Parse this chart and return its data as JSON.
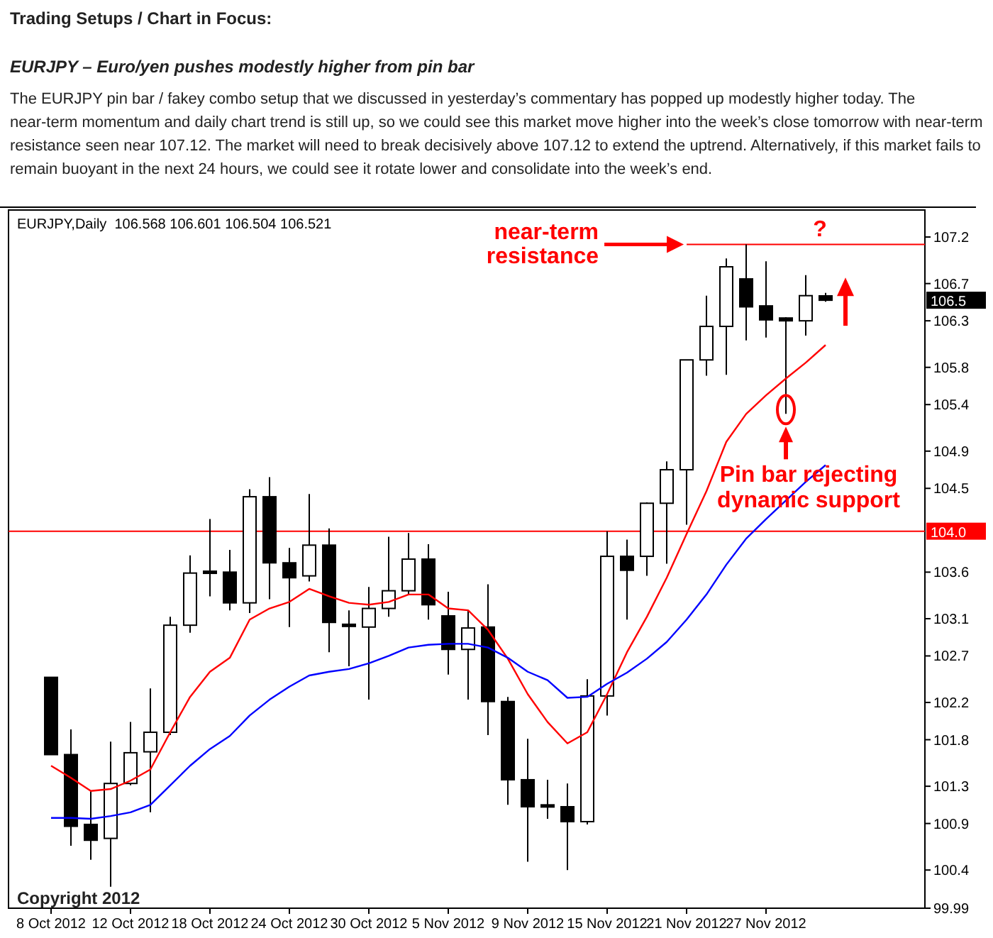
{
  "chart_data": {
    "type": "candlestick",
    "title": "Trading Setups / Chart in Focus:",
    "subtitle": "EURJPY – Euro/yen pushes modestly higher from pin bar",
    "categories": [
      "8 Oct 2012",
      null,
      null,
      null,
      "12 Oct 2012",
      null,
      null,
      null,
      "18 Oct 2012",
      null,
      null,
      null,
      "24 Oct 2012",
      null,
      null,
      null,
      "30 Oct 2012",
      null,
      null,
      null,
      "5 Nov 2012",
      null,
      null,
      null,
      "9 Nov 2012",
      null,
      null,
      null,
      "15 Nov 2012",
      null,
      null,
      null,
      "21 Nov 2012",
      null,
      null,
      null,
      "27 Nov 2012",
      null,
      null,
      null
    ],
    "ohlc": [
      [
        102.47,
        102.47,
        101.64,
        101.64
      ],
      [
        101.64,
        101.91,
        100.66,
        100.87
      ],
      [
        100.89,
        101.25,
        100.51,
        100.72
      ],
      [
        100.74,
        101.78,
        100.22,
        101.33
      ],
      [
        101.33,
        101.99,
        101.31,
        101.66
      ],
      [
        101.67,
        102.35,
        101.02,
        101.88
      ],
      [
        101.88,
        103.12,
        101.85,
        103.03
      ],
      [
        103.03,
        103.78,
        102.95,
        103.59
      ],
      [
        103.61,
        104.17,
        103.34,
        103.59
      ],
      [
        103.6,
        103.84,
        103.19,
        103.27
      ],
      [
        103.27,
        104.49,
        103.16,
        104.41
      ],
      [
        104.41,
        104.62,
        103.31,
        103.7
      ],
      [
        103.7,
        103.86,
        103.01,
        103.54
      ],
      [
        103.56,
        104.44,
        103.5,
        103.89
      ],
      [
        103.89,
        104.07,
        102.74,
        103.06
      ],
      [
        103.04,
        103.19,
        102.59,
        103.02
      ],
      [
        103.01,
        103.44,
        102.23,
        103.21
      ],
      [
        103.21,
        103.98,
        103.12,
        103.4
      ],
      [
        103.4,
        104.02,
        103.36,
        103.74
      ],
      [
        103.74,
        103.9,
        103.09,
        103.25
      ],
      [
        103.13,
        103.39,
        102.5,
        102.77
      ],
      [
        102.77,
        103.19,
        102.23,
        103.0
      ],
      [
        103.01,
        103.47,
        101.85,
        102.21
      ],
      [
        102.21,
        102.26,
        101.1,
        101.37
      ],
      [
        101.37,
        101.81,
        100.49,
        101.08
      ],
      [
        101.1,
        101.37,
        100.95,
        101.09
      ],
      [
        101.08,
        101.33,
        100.4,
        100.92
      ],
      [
        100.92,
        102.45,
        100.89,
        102.27
      ],
      [
        102.27,
        104.04,
        102.06,
        103.77
      ],
      [
        103.77,
        103.95,
        103.09,
        103.62
      ],
      [
        103.77,
        104.35,
        103.56,
        104.34
      ],
      [
        104.34,
        104.79,
        103.69,
        104.7
      ],
      [
        104.7,
        105.88,
        104.11,
        105.88
      ],
      [
        105.88,
        106.57,
        105.71,
        106.24
      ],
      [
        106.24,
        106.97,
        105.72,
        106.88
      ],
      [
        106.75,
        107.12,
        106.09,
        106.45
      ],
      [
        106.46,
        106.94,
        106.12,
        106.31
      ],
      [
        106.33,
        106.34,
        105.3,
        106.3
      ],
      [
        106.3,
        106.79,
        106.14,
        106.57
      ],
      [
        106.568,
        106.601,
        106.504,
        106.521
      ]
    ],
    "series": [
      {
        "type": "line",
        "color": "#ff0000",
        "values": [
          101.52,
          101.39,
          101.25,
          101.27,
          101.36,
          101.48,
          101.88,
          102.26,
          102.53,
          102.68,
          103.09,
          103.21,
          103.28,
          103.42,
          103.34,
          103.27,
          103.25,
          103.28,
          103.36,
          103.36,
          103.21,
          103.19,
          102.98,
          102.67,
          102.29,
          101.99,
          101.76,
          101.88,
          102.29,
          102.74,
          103.12,
          103.54,
          104.01,
          104.47,
          105.0,
          105.3,
          105.5,
          105.68,
          105.85,
          106.04
        ]
      },
      {
        "type": "line",
        "color": "#0000ff",
        "values": [
          100.96,
          100.96,
          100.95,
          100.98,
          101.02,
          101.1,
          101.31,
          101.52,
          101.7,
          101.84,
          102.06,
          102.23,
          102.37,
          102.49,
          102.53,
          102.56,
          102.62,
          102.7,
          102.79,
          102.82,
          102.83,
          102.83,
          102.79,
          102.68,
          102.53,
          102.44,
          102.25,
          102.26,
          102.4,
          102.52,
          102.67,
          102.85,
          103.09,
          103.36,
          103.68,
          103.96,
          104.17,
          104.37,
          104.57,
          104.75
        ]
      }
    ],
    "ylim": [
      99.99,
      107.49
    ],
    "yticks": [
      99.99,
      100.4,
      100.9,
      101.3,
      101.8,
      102.2,
      102.7,
      103.1,
      103.6,
      104.5,
      104.9,
      105.4,
      105.8,
      106.3,
      106.7,
      107.2
    ],
    "ref_lines": [
      {
        "axis": "y",
        "value": 104.04,
        "label": "104.0",
        "color": "#ff0000"
      },
      {
        "axis": "y",
        "value": 107.12,
        "color": "#ff0000"
      }
    ],
    "annotations": [
      "The EURJPY pin bar / fakey combo setup that we discussed in yesterday’s commentary has popped up modestly higher today. The near-term momentum and daily chart trend is still up, so we could see this market move higher into the week’s close tomorrow with near-term resistance seen near 107.12. The market will need to break decisively above 107.12 to extend the uptrend. Alternatively, if this market fails to remain buoyant in the next 24 hours, we could see it rotate lower and consolidate into the week’s end.",
      "EURJPY,Daily  106.568 106.601 106.504 106.521",
      "near-term resistance",
      "?",
      "Pin bar rejecting dynamic support",
      "106.5",
      "Copyright 2012"
    ]
  }
}
